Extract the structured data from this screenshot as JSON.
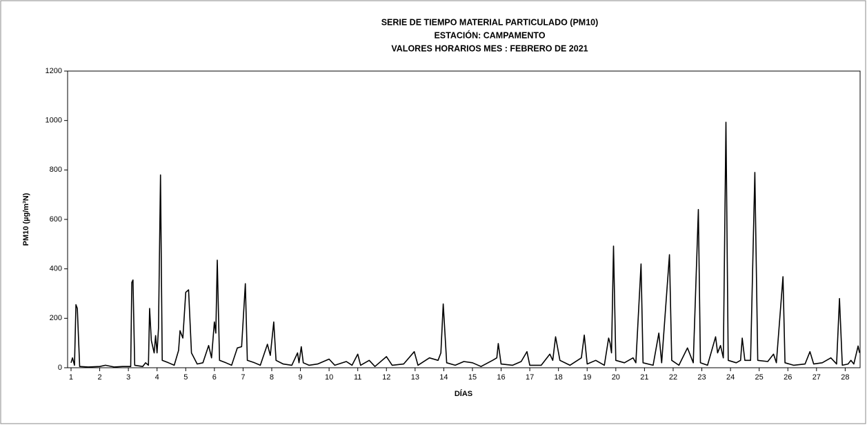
{
  "chart_data": {
    "type": "line",
    "title": [
      "SERIE DE TIEMPO MATERIAL PARTICULADO (PM10)",
      "ESTACIÓN: CAMPAMENTO",
      "VALORES HORARIOS MES : FEBRERO DE 2021"
    ],
    "x_label": "DÍAS",
    "y_label": "PM10 (µg/m³N)",
    "xlim": [
      0.88,
      28.52
    ],
    "xticks": [
      1,
      2,
      3,
      4,
      5,
      6,
      7,
      8,
      9,
      10,
      11,
      12,
      13,
      14,
      15,
      16,
      17,
      18,
      19,
      20,
      21,
      22,
      23,
      24,
      25,
      26,
      27,
      28
    ],
    "ylim": [
      0,
      1200
    ],
    "yticks": [
      0,
      200,
      400,
      600,
      800,
      1000,
      1200
    ],
    "x": [
      1.0,
      1.05,
      1.12,
      1.17,
      1.22,
      1.3,
      1.6,
      2.0,
      2.2,
      2.5,
      2.8,
      3.08,
      3.12,
      3.16,
      3.22,
      3.5,
      3.6,
      3.7,
      3.74,
      3.8,
      3.9,
      3.95,
      4.0,
      4.05,
      4.12,
      4.18,
      4.4,
      4.6,
      4.75,
      4.8,
      4.9,
      5.0,
      5.1,
      5.2,
      5.4,
      5.6,
      5.8,
      5.9,
      6.0,
      6.05,
      6.1,
      6.18,
      6.4,
      6.6,
      6.8,
      6.95,
      7.08,
      7.15,
      7.4,
      7.6,
      7.85,
      7.95,
      8.07,
      8.15,
      8.4,
      8.7,
      8.9,
      8.95,
      9.03,
      9.1,
      9.3,
      9.6,
      10.0,
      10.2,
      10.6,
      10.8,
      11.0,
      11.1,
      11.4,
      11.6,
      12.0,
      12.2,
      12.6,
      12.97,
      13.1,
      13.5,
      13.8,
      13.9,
      13.98,
      14.1,
      14.4,
      14.7,
      15.0,
      15.3,
      15.7,
      15.85,
      15.9,
      16.0,
      16.4,
      16.7,
      16.9,
      17.0,
      17.4,
      17.7,
      17.8,
      17.9,
      18.05,
      18.4,
      18.8,
      18.9,
      19.0,
      19.3,
      19.6,
      19.75,
      19.8,
      19.85,
      19.92,
      20.0,
      20.3,
      20.6,
      20.7,
      20.88,
      20.95,
      21.3,
      21.5,
      21.6,
      21.87,
      21.95,
      22.2,
      22.5,
      22.7,
      22.88,
      22.95,
      23.2,
      23.48,
      23.55,
      23.65,
      23.75,
      23.84,
      23.92,
      24.2,
      24.35,
      24.41,
      24.5,
      24.7,
      24.85,
      24.95,
      25.3,
      25.5,
      25.6,
      25.83,
      25.9,
      26.2,
      26.6,
      26.77,
      26.9,
      27.2,
      27.5,
      27.7,
      27.8,
      27.9,
      28.1,
      28.2,
      28.3,
      28.45,
      28.5
    ],
    "series": [
      {
        "color": "#000000",
        "values": [
          20,
          40,
          10,
          255,
          240,
          5,
          3,
          5,
          10,
          3,
          5,
          5,
          345,
          355,
          10,
          5,
          20,
          10,
          240,
          110,
          60,
          130,
          60,
          160,
          780,
          30,
          20,
          10,
          70,
          150,
          120,
          305,
          315,
          60,
          15,
          20,
          90,
          40,
          185,
          140,
          435,
          30,
          20,
          10,
          80,
          85,
          340,
          30,
          20,
          10,
          95,
          50,
          185,
          30,
          15,
          10,
          60,
          20,
          85,
          20,
          10,
          15,
          35,
          10,
          25,
          10,
          55,
          10,
          30,
          5,
          45,
          10,
          15,
          65,
          10,
          40,
          30,
          60,
          258,
          20,
          10,
          25,
          20,
          5,
          30,
          40,
          98,
          15,
          10,
          25,
          65,
          10,
          10,
          55,
          30,
          125,
          30,
          10,
          40,
          132,
          15,
          30,
          10,
          120,
          100,
          60,
          492,
          30,
          20,
          40,
          20,
          420,
          20,
          10,
          140,
          20,
          457,
          30,
          10,
          80,
          20,
          640,
          20,
          10,
          125,
          60,
          90,
          40,
          993,
          30,
          20,
          30,
          120,
          30,
          30,
          790,
          30,
          25,
          55,
          20,
          368,
          20,
          10,
          15,
          65,
          15,
          20,
          40,
          15,
          280,
          10,
          15,
          30,
          15,
          88,
          60
        ]
      }
    ]
  }
}
